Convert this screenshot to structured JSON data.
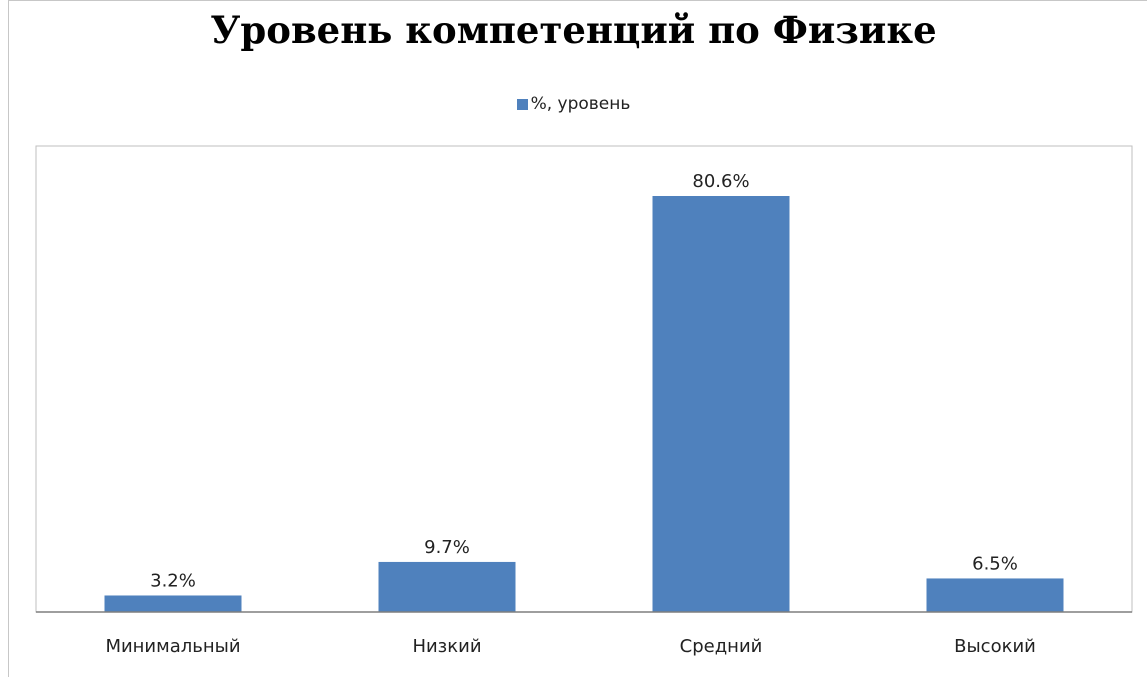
{
  "chart_data": {
    "type": "bar",
    "title": "Уровень компетенций по Физике",
    "categories": [
      "Минимальный",
      "Низкий",
      "Средний",
      "Высокий"
    ],
    "series": [
      {
        "name": "%, уровень",
        "values": [
          3.2,
          9.7,
          80.6,
          6.5
        ],
        "labels": [
          "3.2%",
          "9.7%",
          "80.6%",
          "6.5%"
        ]
      }
    ],
    "xlabel": "",
    "ylabel": "",
    "ylim": [
      0,
      90
    ],
    "grid": false,
    "legend_position": "top",
    "bar_color": "#4f81bd"
  }
}
